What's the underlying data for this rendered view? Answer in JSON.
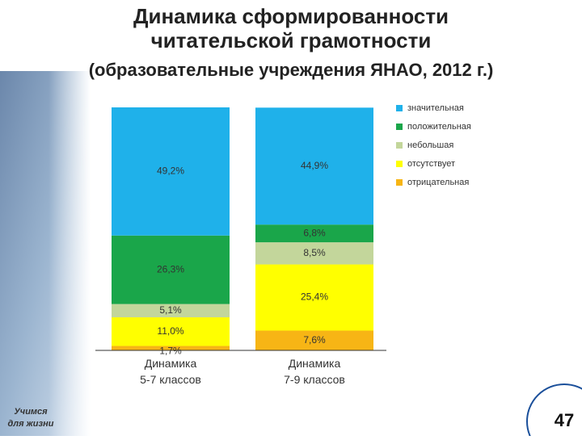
{
  "chart_data": {
    "type": "stacked-bar",
    "title": "Динамика сформированности\nчитательской грамотности",
    "subtitle": "(образовательные учреждения ЯНАО, 2012 г.)",
    "categories": [
      "Динамика\n5-7 классов",
      "Динамика\n7-9 классов"
    ],
    "series": [
      {
        "name": "отрицательная",
        "color": "#f7b515",
        "values": [
          1.7,
          7.6
        ],
        "value_labels": [
          "1,7%",
          "7,6%"
        ]
      },
      {
        "name": "отсутствует",
        "color": "#ffff00",
        "values": [
          11.0,
          25.4
        ],
        "value_labels": [
          "11,0%",
          "25,4%"
        ]
      },
      {
        "name": "небольшая",
        "color": "#c3d69b",
        "values": [
          5.1,
          8.5
        ],
        "value_labels": [
          "5,1%",
          "8,5%"
        ]
      },
      {
        "name": "положительная",
        "color": "#1aa64a",
        "values": [
          26.3,
          6.8
        ],
        "value_labels": [
          "26,3%",
          "6,8%"
        ]
      },
      {
        "name": "значительная",
        "color": "#1fb1ea",
        "values": [
          49.2,
          44.9
        ],
        "value_labels": [
          "49,2%",
          "44,9%"
        ]
      }
    ],
    "legend": "right"
  },
  "footer": {
    "motto": "Учимся\nдля жизни",
    "slide_number": "47"
  }
}
